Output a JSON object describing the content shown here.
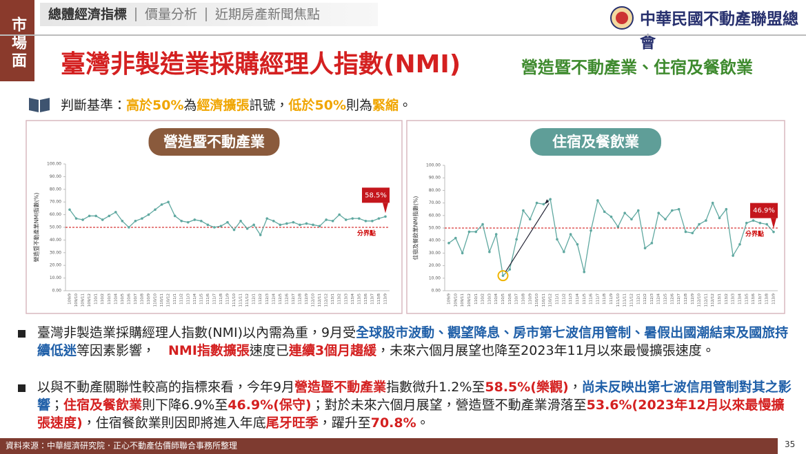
{
  "side_tab": "市場面",
  "nav": [
    "總體經濟指標",
    "價量分析",
    "近期房產新聞焦點"
  ],
  "logo": "中華民國不動產聯盟總會",
  "title": "臺灣非製造業採購經理人指數(NMI)",
  "subtitle": "營造暨不動產業、住宿及餐飲業",
  "criterion": [
    {
      "text": "判斷基準：",
      "style": "plain"
    },
    {
      "text": "高於50%",
      "style": "orange"
    },
    {
      "text": "為",
      "style": "plain"
    },
    {
      "text": "經濟擴張",
      "style": "orange"
    },
    {
      "text": "訊號，",
      "style": "plain"
    },
    {
      "text": "低於50%",
      "style": "orange"
    },
    {
      "text": "則為",
      "style": "plain"
    },
    {
      "text": "緊縮",
      "style": "orange"
    },
    {
      "text": "。",
      "style": "plain"
    }
  ],
  "bullets": [
    [
      {
        "text": "臺灣非製造業採購經理人指數(NMI)以內需為重，9月受",
        "style": "plain"
      },
      {
        "text": "全球股市波動、觀望降息、房市第七波信用管制、暑假出國潮結束及國旅持續低迷",
        "style": "blue"
      },
      {
        "text": "等因素影響，　",
        "style": "plain"
      },
      {
        "text": "NMI指數擴張",
        "style": "red"
      },
      {
        "text": "速度已",
        "style": "plain"
      },
      {
        "text": "連續3個月趨緩",
        "style": "red"
      },
      {
        "text": "，未來六個月展望也降至2023年11月以來最慢擴張速度。",
        "style": "plain"
      }
    ],
    [
      {
        "text": "以與不動產關聯性較高的指標來看，今年9月",
        "style": "plain"
      },
      {
        "text": "營造暨不動產業",
        "style": "red"
      },
      {
        "text": "指數微升1.2%至",
        "style": "plain"
      },
      {
        "text": "58.5%(樂觀)",
        "style": "red"
      },
      {
        "text": "，",
        "style": "plain"
      },
      {
        "text": "尚未反映出第七波信用管制對其之影響",
        "style": "blue"
      },
      {
        "text": "；",
        "style": "plain"
      },
      {
        "text": "住宿及餐飲業",
        "style": "red"
      },
      {
        "text": "則下降6.9%至",
        "style": "plain"
      },
      {
        "text": "46.9%(保守)",
        "style": "red"
      },
      {
        "text": "；對於未來六個月展望，營造暨不動產業滑落至",
        "style": "plain"
      },
      {
        "text": "53.6%(2023年12月以來最慢擴張速度)",
        "style": "red"
      },
      {
        "text": "，住宿餐飲業則因即將進入年底",
        "style": "plain"
      },
      {
        "text": "尾牙旺季",
        "style": "red"
      },
      {
        "text": "，躍升至",
        "style": "plain"
      },
      {
        "text": "70.8%",
        "style": "red"
      },
      {
        "text": "。",
        "style": "plain"
      }
    ]
  ],
  "source": "資料來源：中華經濟研究院．正心不動產估價師聯合事務所整理",
  "page_number": "35",
  "chart_data": [
    {
      "type": "line",
      "title": "營造暨不動產業",
      "title_color": "#8a5a3c",
      "ylabel": "營造暨不動產業NMI指數(%)",
      "color": "#5fa8a0",
      "categories": [
        "109/9",
        "109/10",
        "109/11",
        "109/12",
        "110/1",
        "110/2",
        "110/3",
        "110/4",
        "110/5",
        "110/6",
        "110/7",
        "110/8",
        "110/9",
        "110/10",
        "110/11",
        "110/12",
        "111/1",
        "111/2",
        "111/3",
        "111/4",
        "111/5",
        "111/6",
        "111/7",
        "111/8",
        "111/9",
        "111/10",
        "111/11",
        "111/12",
        "112/1",
        "112/2",
        "112/3",
        "112/4",
        "112/5",
        "112/6",
        "112/7",
        "112/8",
        "112/9",
        "112/10",
        "112/11",
        "112/12",
        "113/1",
        "113/2",
        "113/3",
        "113/4",
        "113/5",
        "113/6",
        "113/7",
        "113/8",
        "113/9"
      ],
      "values": [
        64,
        57,
        56,
        59,
        59,
        56,
        59,
        62,
        55,
        50,
        55,
        57,
        60,
        64,
        68,
        70,
        59,
        55,
        54,
        56,
        55,
        52,
        50,
        51,
        54,
        48,
        55,
        49,
        52,
        44,
        57,
        55,
        52,
        53,
        54,
        52,
        53,
        52,
        51,
        56,
        55,
        60,
        56,
        57,
        57,
        55,
        55,
        57,
        58.5
      ],
      "value_labels": [
        null,
        null,
        null,
        null,
        null,
        null,
        null,
        null,
        null,
        null,
        null,
        null,
        null,
        null,
        null,
        null,
        null,
        null,
        null,
        null,
        null,
        null,
        null,
        null,
        null,
        null,
        null,
        null,
        null,
        null,
        null,
        null,
        null,
        null,
        null,
        null,
        null,
        null,
        null,
        null,
        null,
        null,
        null,
        null,
        null,
        null,
        null,
        null,
        "58.5%"
      ],
      "ref_line": {
        "value": 50,
        "label": "分界點"
      },
      "ylim": [
        0,
        100
      ],
      "yticks": [
        {
          "value": 0,
          "label": "0.00"
        },
        {
          "value": 10,
          "label": "10.00"
        },
        {
          "value": 20,
          "label": "20.00"
        },
        {
          "value": 30,
          "label": "30.00"
        },
        {
          "value": 40,
          "label": "40.00"
        },
        {
          "value": 50,
          "label": "50.00"
        },
        {
          "value": 60,
          "label": "60.00"
        },
        {
          "value": 70,
          "label": "70.00"
        },
        {
          "value": 80,
          "label": "80.00"
        },
        {
          "value": 90,
          "label": "90.00"
        },
        {
          "value": 100,
          "label": "100.00"
        }
      ]
    },
    {
      "type": "line",
      "title": "住宿及餐飲業",
      "title_color": "#5f9e98",
      "ylabel": "住宿及餐飲業NMI指數(%)",
      "color": "#5fa8a0",
      "categories": [
        "109/9",
        "109/10",
        "109/11",
        "109/12",
        "110/1",
        "110/2",
        "110/3",
        "110/4",
        "110/5",
        "110/6",
        "110/7",
        "110/8",
        "110/9",
        "110/10",
        "110/11",
        "110/12",
        "111/1",
        "111/2",
        "111/3",
        "111/4",
        "111/5",
        "111/6",
        "111/7",
        "111/8",
        "111/9",
        "111/10",
        "111/11",
        "111/12",
        "112/1",
        "112/2",
        "112/3",
        "112/4",
        "112/5",
        "112/6",
        "112/7",
        "112/8",
        "112/9",
        "112/10",
        "112/11",
        "112/12",
        "113/1",
        "113/2",
        "113/3",
        "113/4",
        "113/5",
        "113/6",
        "113/7",
        "113/8",
        "113/9"
      ],
      "values": [
        38,
        42,
        30,
        47,
        47,
        53,
        31,
        45,
        12,
        17,
        41,
        64,
        57,
        70,
        69,
        73,
        41,
        31,
        45,
        37,
        15,
        48,
        72,
        63,
        59,
        51,
        62,
        57,
        64,
        34,
        38,
        62,
        57,
        64,
        65,
        47,
        46,
        53,
        56,
        70,
        58,
        65,
        28,
        37,
        54,
        56,
        54,
        53,
        46.9
      ],
      "value_labels": [
        null,
        null,
        null,
        null,
        null,
        null,
        null,
        null,
        null,
        null,
        null,
        null,
        null,
        null,
        null,
        null,
        null,
        null,
        null,
        null,
        null,
        null,
        null,
        null,
        null,
        null,
        null,
        null,
        null,
        null,
        null,
        null,
        null,
        null,
        null,
        null,
        null,
        null,
        null,
        null,
        null,
        null,
        null,
        null,
        null,
        null,
        null,
        null,
        "46.9%"
      ],
      "ref_line": {
        "value": 50,
        "label": "分界點"
      },
      "ylim": [
        0,
        100
      ],
      "yticks": [
        {
          "value": 0,
          "label": "0.00"
        },
        {
          "value": 10,
          "label": "10.00"
        },
        {
          "value": 20,
          "label": "20.00"
        },
        {
          "value": 30,
          "label": "30.00"
        },
        {
          "value": 40,
          "label": "40.00"
        },
        {
          "value": 50,
          "label": "50.00"
        },
        {
          "value": 60,
          "label": "60.00"
        },
        {
          "value": 70,
          "label": "70.00"
        },
        {
          "value": 80,
          "label": "80.00"
        },
        {
          "value": 90,
          "label": "90.00"
        },
        {
          "value": 100,
          "label": "100.00"
        }
      ]
    }
  ]
}
